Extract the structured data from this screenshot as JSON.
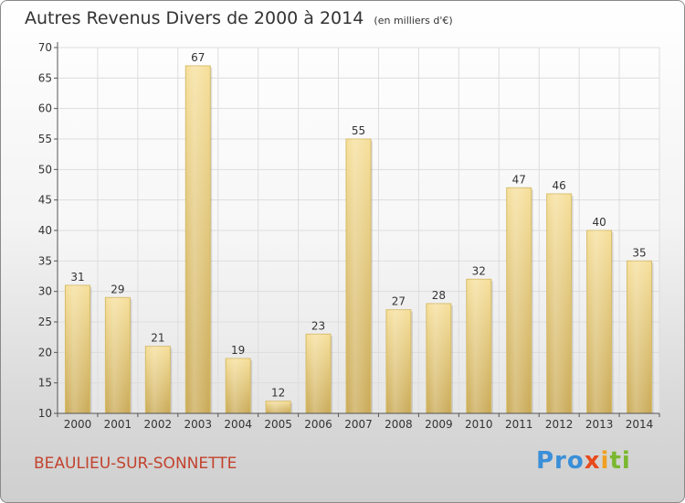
{
  "chart_data": {
    "type": "bar",
    "title": "Autres Revenus Divers de 2000 à 2014",
    "subtitle": "(en milliers d'€)",
    "categories": [
      "2000",
      "2001",
      "2002",
      "2003",
      "2004",
      "2005",
      "2006",
      "2007",
      "2008",
      "2009",
      "2010",
      "2011",
      "2012",
      "2013",
      "2014"
    ],
    "values": [
      31,
      29,
      21,
      67,
      19,
      12,
      23,
      55,
      27,
      28,
      32,
      47,
      46,
      40,
      35
    ],
    "ylim": [
      10,
      70
    ],
    "yticks": [
      10,
      15,
      20,
      25,
      30,
      35,
      40,
      45,
      50,
      55,
      60,
      65,
      70
    ],
    "grid": true,
    "bar_color": "#e9cf7e",
    "grid_color": "#dddddd"
  },
  "footer": {
    "place": "BEAULIEU-SUR-SONNETTE",
    "logo": {
      "p1": "Pro",
      "p2": "x",
      "p3": "i",
      "p4": "ti"
    }
  }
}
